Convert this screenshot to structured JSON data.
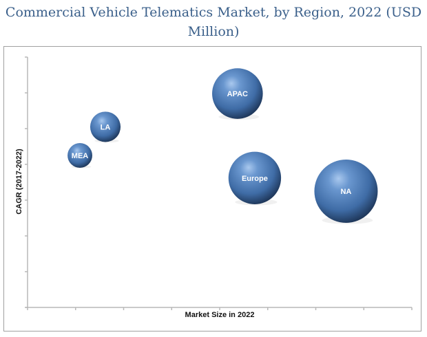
{
  "chart_data": {
    "type": "bubble",
    "title": "Commercial Vehicle Telematics Market, by Region, 2022 (USD Million)",
    "title_lines": [
      "Commercial Vehicle Telematics Market, by Region, 2022 (USD",
      "Million)"
    ],
    "xlabel": "Market Size in 2022",
    "ylabel": "CAGR (2017-2022)",
    "xlim": [
      0,
      8
    ],
    "ylim": [
      0,
      7
    ],
    "x_ticks": 8,
    "y_ticks": 7,
    "grid": false,
    "legend": "none",
    "bubble_color": "#4a78b0",
    "points": [
      {
        "label": "MEA",
        "x": 1.09,
        "y": 4.25,
        "size": 0.39
      },
      {
        "label": "LA",
        "x": 1.62,
        "y": 5.05,
        "size": 0.48
      },
      {
        "label": "APAC",
        "x": 4.37,
        "y": 5.98,
        "size": 0.8
      },
      {
        "label": "Europe",
        "x": 4.73,
        "y": 3.62,
        "size": 0.83
      },
      {
        "label": "NA",
        "x": 6.63,
        "y": 3.25,
        "size": 1.0
      }
    ]
  }
}
